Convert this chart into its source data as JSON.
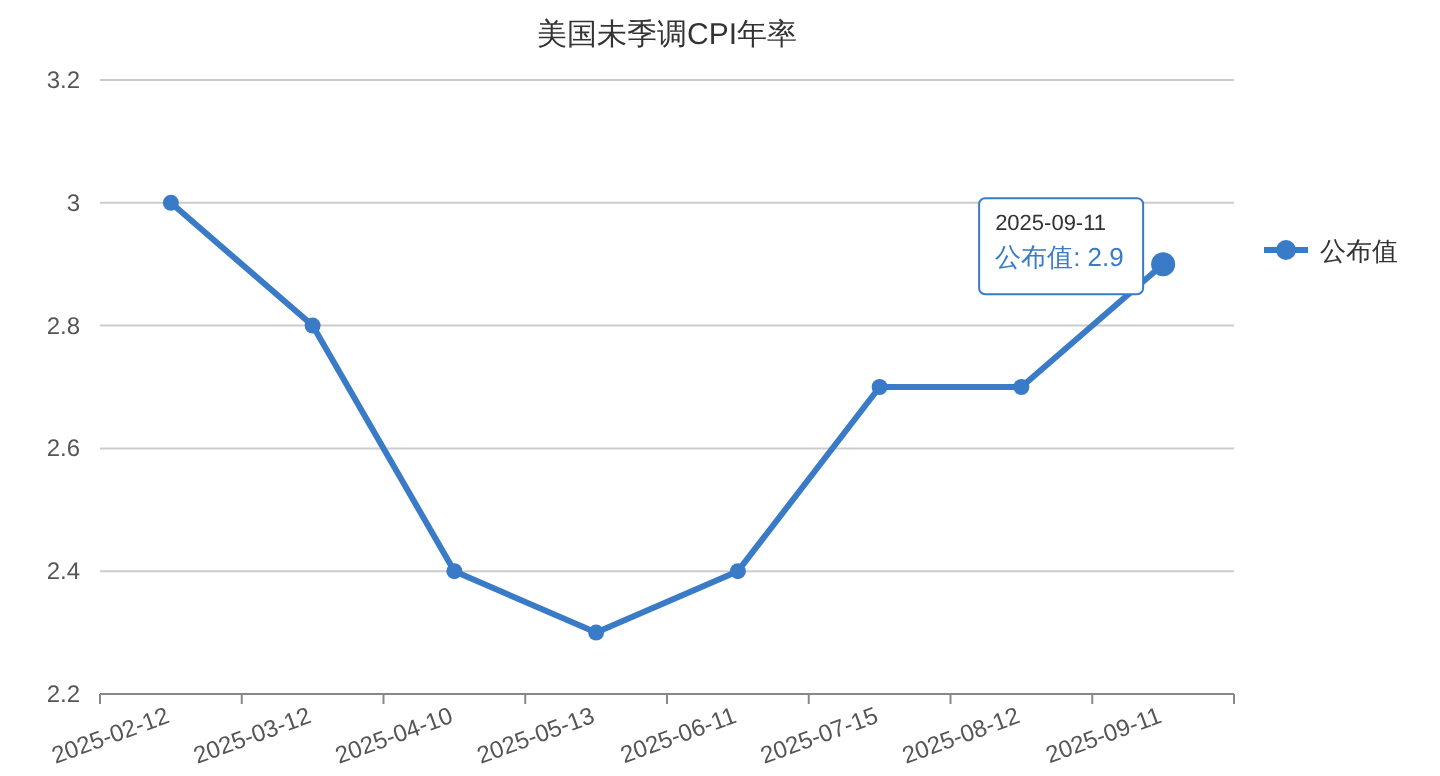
{
  "chart_data": {
    "type": "line",
    "title": "美国未季调CPI年率",
    "categories": [
      "2025-02-12",
      "2025-03-12",
      "2025-04-10",
      "2025-05-13",
      "2025-06-11",
      "2025-07-15",
      "2025-08-12",
      "2025-09-11"
    ],
    "series": [
      {
        "name": "公布值",
        "color": "#3a7bc8",
        "values": [
          3.0,
          2.8,
          2.4,
          2.3,
          2.4,
          2.7,
          2.7,
          2.9
        ]
      }
    ],
    "ylim": [
      2.2,
      3.2
    ],
    "yticks": [
      2.2,
      2.4,
      2.6,
      2.8,
      3,
      3.2
    ],
    "grid": "y",
    "legend": "right",
    "marker": "circle",
    "line_style": "solid",
    "annotations": [
      {
        "text": "2025-09-11\n公布值: 2.9",
        "x": "2025-09-11",
        "y": 2.9
      }
    ]
  }
}
